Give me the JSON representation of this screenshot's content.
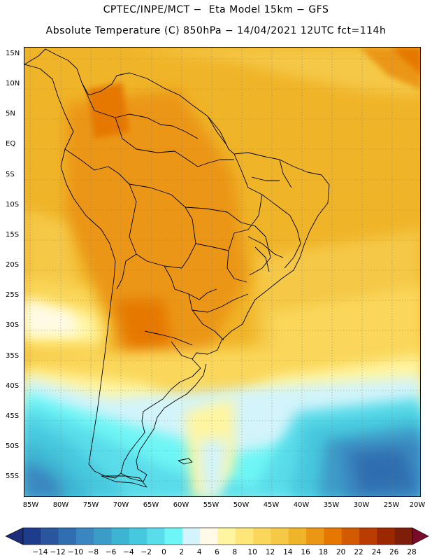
{
  "header": {
    "line1": "CPTEC/INPE/MCT −  Eta Model 15km − GFS",
    "line2": "Absolute Temperature (C) 850hPa − 14/04/2021 12UTC fct=114h"
  },
  "map": {
    "lat_labels": [
      "15N",
      "10N",
      "5N",
      "EQ",
      "5S",
      "10S",
      "15S",
      "20S",
      "25S",
      "30S",
      "35S",
      "40S",
      "45S",
      "50S",
      "55S"
    ],
    "lon_labels": [
      "85W",
      "80W",
      "75W",
      "70W",
      "65W",
      "60W",
      "55W",
      "50W",
      "45W",
      "40W",
      "35W",
      "30W",
      "25W",
      "20W"
    ]
  },
  "legend": {
    "labels": [
      "-14",
      "-12",
      "-10",
      "-8",
      "-6",
      "-4",
      "-2",
      "0",
      "2",
      "4",
      "6",
      "8",
      "10",
      "12",
      "14",
      "16",
      "18",
      "20",
      "22",
      "24",
      "26",
      "28"
    ],
    "colors": [
      "#1e3c8c",
      "#2a569e",
      "#2f6eb0",
      "#3a86c0",
      "#3c9cc8",
      "#3cb4d2",
      "#46c8de",
      "#5adcea",
      "#6ef5f5",
      "#d2f4fa",
      "#fffae6",
      "#fff5a0",
      "#ffe678",
      "#fad75a",
      "#f5c846",
      "#f0b428",
      "#eb9614",
      "#e67800",
      "#d25a00",
      "#b93c00",
      "#9b2800",
      "#7d1e0a"
    ],
    "under_color": "#1e2d78",
    "over_color": "#7a0a2a"
  }
}
